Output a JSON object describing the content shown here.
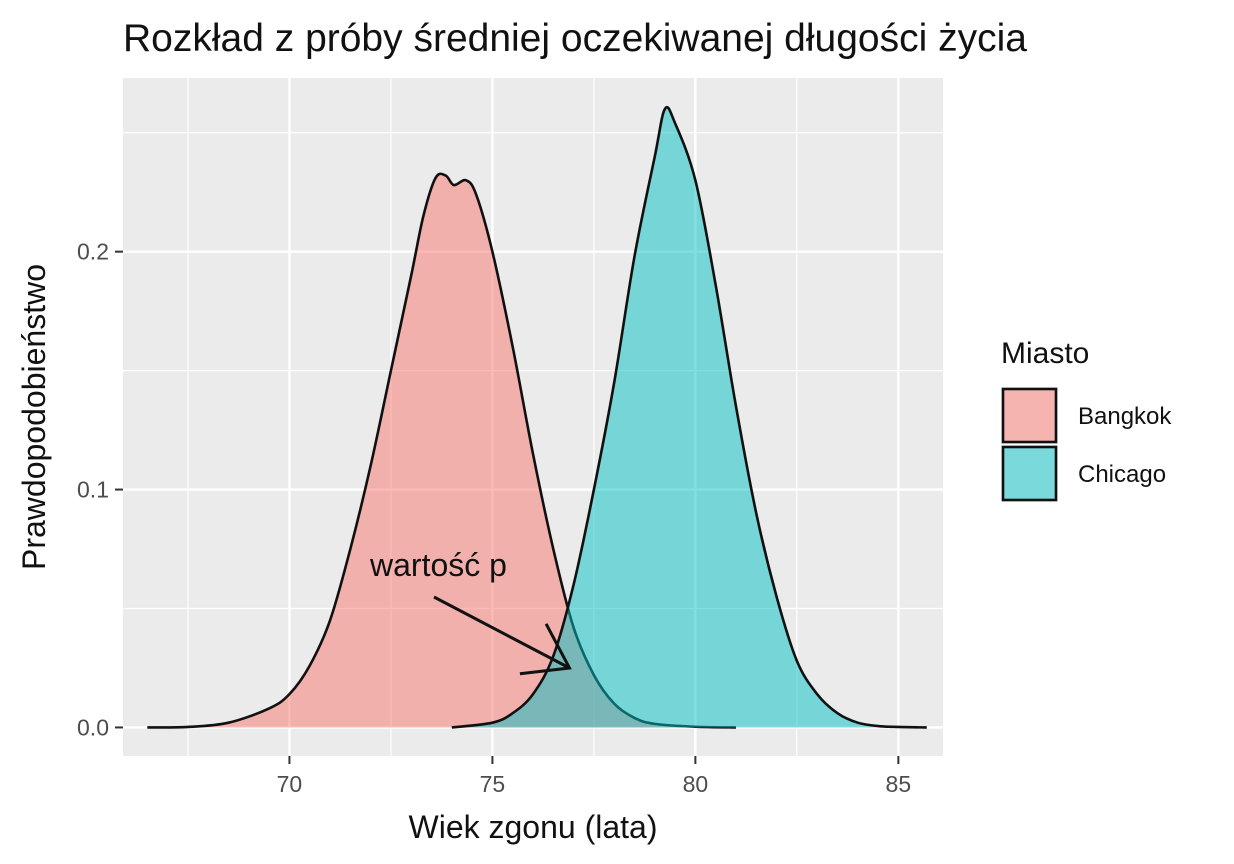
{
  "chart_data": {
    "type": "area",
    "title": "Rozkład z próby średniej oczekiwanej długości życia",
    "xlabel": "Wiek zgonu (lata)",
    "ylabel": "Prawdopodobieństwo",
    "xlim": [
      65.9,
      86.1
    ],
    "ylim": [
      -0.012,
      0.273
    ],
    "x_ticks": [
      {
        "value": 70,
        "label": "70"
      },
      {
        "value": 75,
        "label": "75"
      },
      {
        "value": 80,
        "label": "80"
      },
      {
        "value": 85,
        "label": "85"
      }
    ],
    "y_ticks": [
      {
        "value": 0.0,
        "label": "0.0"
      },
      {
        "value": 0.1,
        "label": "0.1"
      },
      {
        "value": 0.2,
        "label": "0.2"
      }
    ],
    "grid": true,
    "legend": {
      "title": "Miasto",
      "position": "right"
    },
    "series": [
      {
        "name": "Bangkok",
        "color": "#F8766D",
        "points": [
          [
            66.5,
            0.0
          ],
          [
            67.5,
            0.0002
          ],
          [
            68.5,
            0.002
          ],
          [
            69.5,
            0.008
          ],
          [
            70.0,
            0.014
          ],
          [
            70.5,
            0.026
          ],
          [
            71.0,
            0.045
          ],
          [
            71.5,
            0.075
          ],
          [
            72.0,
            0.11
          ],
          [
            72.5,
            0.15
          ],
          [
            73.0,
            0.19
          ],
          [
            73.3,
            0.215
          ],
          [
            73.6,
            0.231
          ],
          [
            73.85,
            0.232
          ],
          [
            74.05,
            0.228
          ],
          [
            74.35,
            0.23
          ],
          [
            74.6,
            0.224
          ],
          [
            75.0,
            0.2
          ],
          [
            75.5,
            0.16
          ],
          [
            76.0,
            0.115
          ],
          [
            76.5,
            0.075
          ],
          [
            77.0,
            0.042
          ],
          [
            77.5,
            0.022
          ],
          [
            78.0,
            0.01
          ],
          [
            78.5,
            0.004
          ],
          [
            79.0,
            0.0015
          ],
          [
            80.0,
            0.0003
          ],
          [
            81.0,
            0.0
          ]
        ]
      },
      {
        "name": "Chicago",
        "color": "#00BFC4",
        "points": [
          [
            74.0,
            0.0
          ],
          [
            75.0,
            0.002
          ],
          [
            75.5,
            0.006
          ],
          [
            76.0,
            0.014
          ],
          [
            76.5,
            0.03
          ],
          [
            77.0,
            0.06
          ],
          [
            77.5,
            0.1
          ],
          [
            78.0,
            0.145
          ],
          [
            78.5,
            0.198
          ],
          [
            79.0,
            0.24
          ],
          [
            79.25,
            0.26
          ],
          [
            79.5,
            0.254
          ],
          [
            80.0,
            0.23
          ],
          [
            80.5,
            0.186
          ],
          [
            81.0,
            0.135
          ],
          [
            81.5,
            0.09
          ],
          [
            82.0,
            0.055
          ],
          [
            82.5,
            0.028
          ],
          [
            83.0,
            0.014
          ],
          [
            83.5,
            0.006
          ],
          [
            84.0,
            0.002
          ],
          [
            84.5,
            0.0006
          ],
          [
            85.0,
            0.0002
          ],
          [
            85.7,
            0.0
          ]
        ]
      }
    ],
    "annotations": [
      {
        "text": "wartość p",
        "arrow_to": [
          76.9,
          0.025
        ]
      }
    ]
  }
}
